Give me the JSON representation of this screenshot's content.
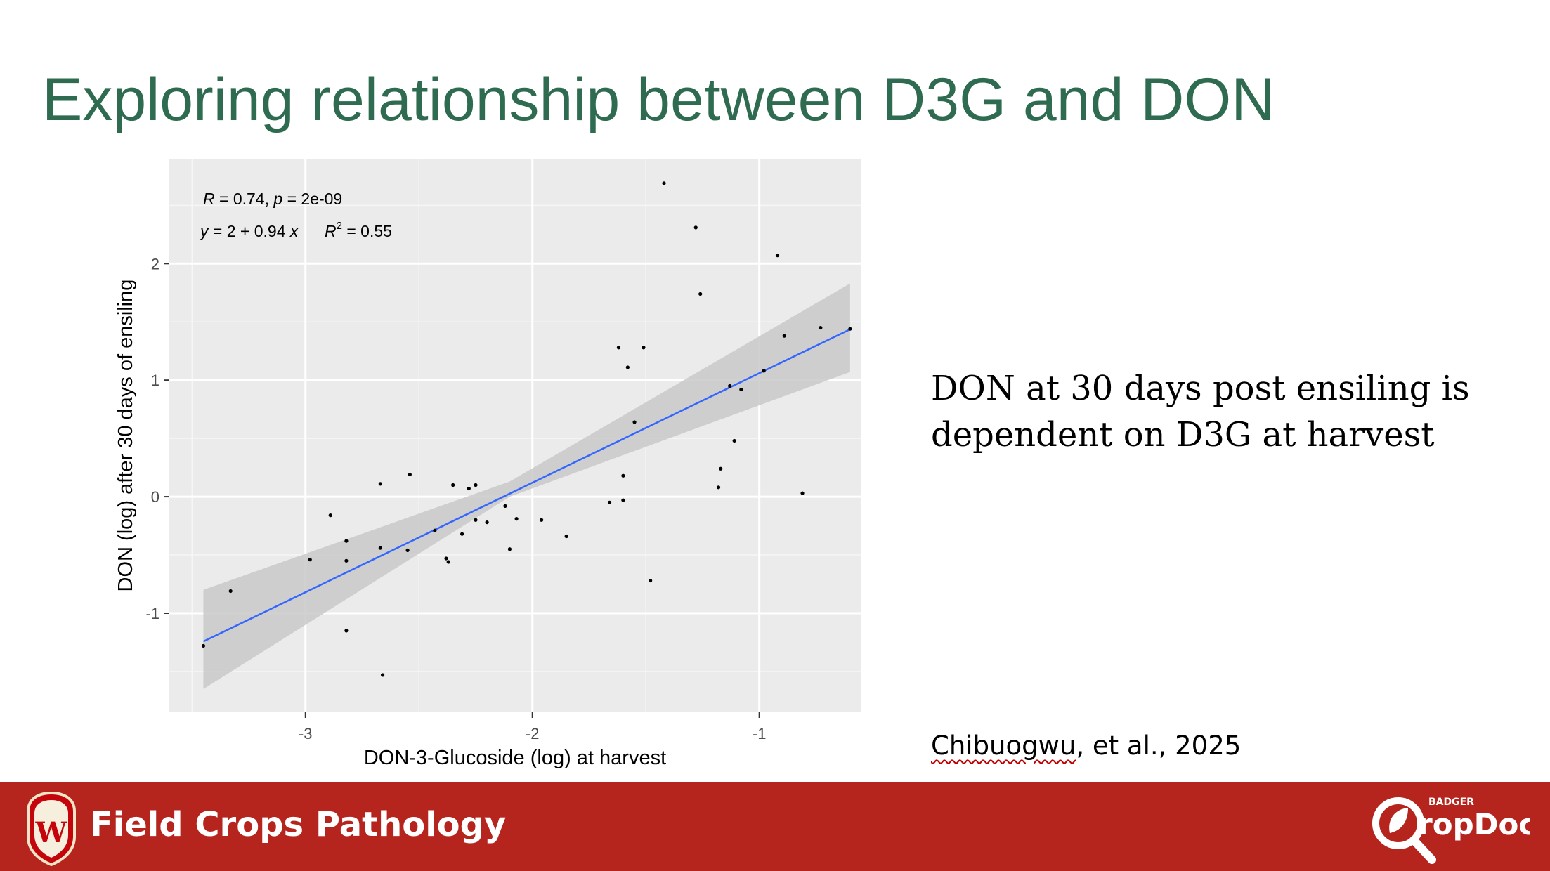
{
  "slide": {
    "title": "Exploring relationship between D3G and DON",
    "main_text": "DON at 30 days post ensiling is dependent on D3G at harvest",
    "citation_author": "Chibuogwu",
    "citation_rest": ", et al., 2025"
  },
  "footer": {
    "title": "Field Crops Pathology",
    "crest_letter": "W",
    "brand_small": "BADGER",
    "brand_main": "ropDoc"
  },
  "colors": {
    "title": "#2e6b50",
    "footer": "#b5251e",
    "panel": "#ebebeb",
    "regression_line": "#3366ff",
    "confidence_band": "#c9c9c9"
  },
  "chart_data": {
    "type": "scatter",
    "xlabel": "DON-3-Glucoside (log) at harvest",
    "ylabel": "DON (log) after 30 days of ensiling",
    "xlim": [
      -3.6,
      -0.55
    ],
    "ylim": [
      -1.85,
      2.9
    ],
    "x_ticks": [
      -3,
      -2,
      -1
    ],
    "y_ticks": [
      -1,
      0,
      1,
      2
    ],
    "x_tick_labels": [
      "-3",
      "-2",
      "-1"
    ],
    "y_tick_labels": [
      "-1",
      "0",
      "1",
      "2"
    ],
    "grid": true,
    "annotation": {
      "stat_R_label": "R",
      "stat_R_value": " = 0.74, ",
      "stat_p_label": "p",
      "stat_p_value": " = 2e-09",
      "eq_y": "y",
      "eq_body": " = 2 + 0.94 ",
      "eq_x": "x",
      "r2_label": "R",
      "r2_exp": "2",
      "r2_value": " = 0.55"
    },
    "regression": {
      "intercept": 2.0,
      "slope": 0.94,
      "x_range": [
        -3.45,
        -0.6
      ]
    },
    "confidence_band": {
      "x": [
        -3.45,
        -2.1,
        -0.6
      ],
      "lower": [
        -1.65,
        0.0,
        1.07
      ],
      "upper": [
        -0.8,
        0.13,
        1.83
      ]
    },
    "points": [
      [
        -3.45,
        -1.28
      ],
      [
        -3.33,
        -0.81
      ],
      [
        -2.98,
        -0.54
      ],
      [
        -2.89,
        -0.16
      ],
      [
        -2.82,
        -0.38
      ],
      [
        -2.82,
        -0.55
      ],
      [
        -2.82,
        -1.15
      ],
      [
        -2.67,
        0.11
      ],
      [
        -2.67,
        -0.44
      ],
      [
        -2.66,
        -1.53
      ],
      [
        -2.55,
        -0.46
      ],
      [
        -2.54,
        0.19
      ],
      [
        -2.43,
        -0.29
      ],
      [
        -2.38,
        -0.53
      ],
      [
        -2.37,
        -0.56
      ],
      [
        -2.35,
        0.1
      ],
      [
        -2.31,
        -0.32
      ],
      [
        -2.28,
        0.07
      ],
      [
        -2.25,
        0.1
      ],
      [
        -2.25,
        -0.2
      ],
      [
        -2.2,
        -0.22
      ],
      [
        -2.12,
        -0.08
      ],
      [
        -2.1,
        -0.45
      ],
      [
        -2.07,
        -0.19
      ],
      [
        -1.96,
        -0.2
      ],
      [
        -1.85,
        -0.34
      ],
      [
        -1.66,
        -0.05
      ],
      [
        -1.62,
        1.28
      ],
      [
        -1.6,
        0.18
      ],
      [
        -1.6,
        -0.03
      ],
      [
        -1.58,
        1.11
      ],
      [
        -1.55,
        0.64
      ],
      [
        -1.51,
        1.28
      ],
      [
        -1.48,
        -0.72
      ],
      [
        -1.42,
        2.69
      ],
      [
        -1.28,
        2.31
      ],
      [
        -1.26,
        1.74
      ],
      [
        -1.18,
        0.08
      ],
      [
        -1.17,
        0.24
      ],
      [
        -1.13,
        0.95
      ],
      [
        -1.11,
        0.48
      ],
      [
        -1.08,
        0.92
      ],
      [
        -0.98,
        1.08
      ],
      [
        -0.92,
        2.07
      ],
      [
        -0.89,
        1.38
      ],
      [
        -0.81,
        0.03
      ],
      [
        -0.73,
        1.45
      ],
      [
        -0.6,
        1.44
      ]
    ]
  }
}
